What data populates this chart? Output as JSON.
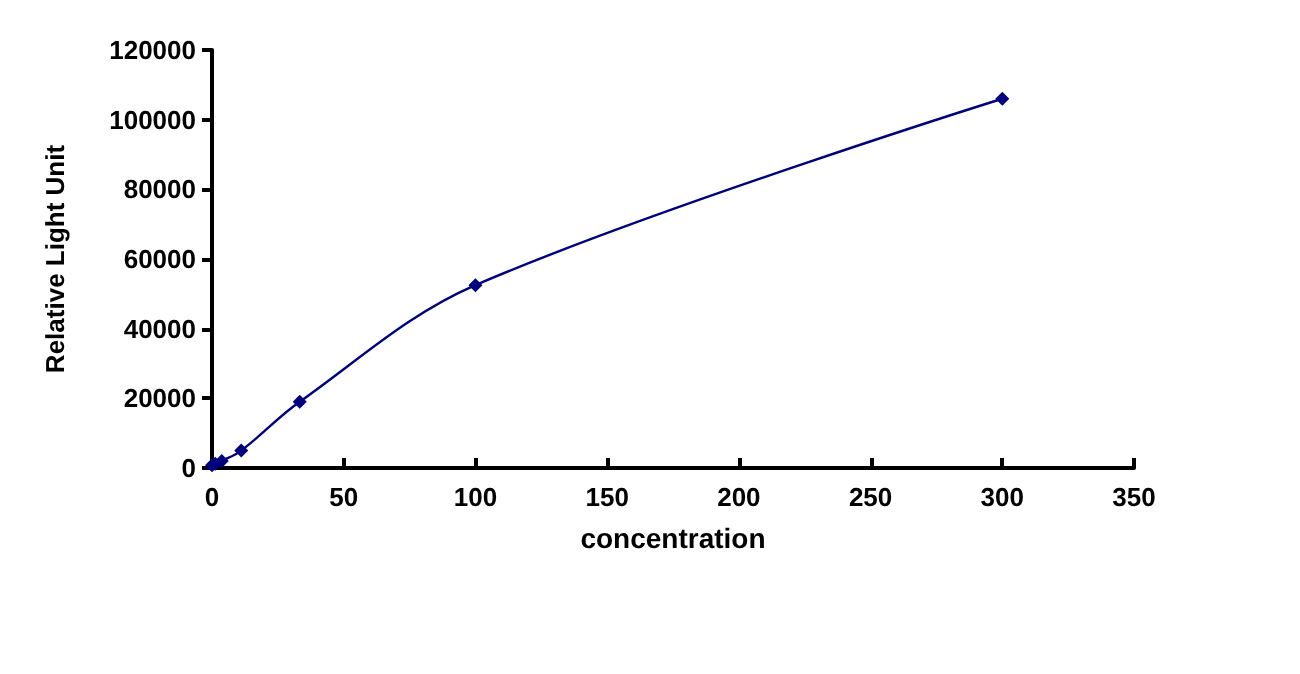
{
  "chart_data": {
    "type": "line",
    "xlabel": "concentration",
    "ylabel": "Relative Light Unit",
    "x": [
      0,
      1.23,
      3.7,
      11.1,
      33.3,
      100,
      300
    ],
    "series": [
      {
        "color": "#000080",
        "values": [
          800,
          1200,
          2000,
          5000,
          19000,
          52500,
          106000
        ]
      }
    ],
    "xlim": [
      0,
      350
    ],
    "xticks": [
      0,
      50,
      100,
      150,
      200,
      250,
      300,
      350
    ],
    "ylim": [
      0,
      120000
    ],
    "yticks": [
      0,
      20000,
      40000,
      60000,
      80000,
      100000,
      120000
    ],
    "marker": "diamond",
    "line_style": "solid",
    "grid": false
  }
}
